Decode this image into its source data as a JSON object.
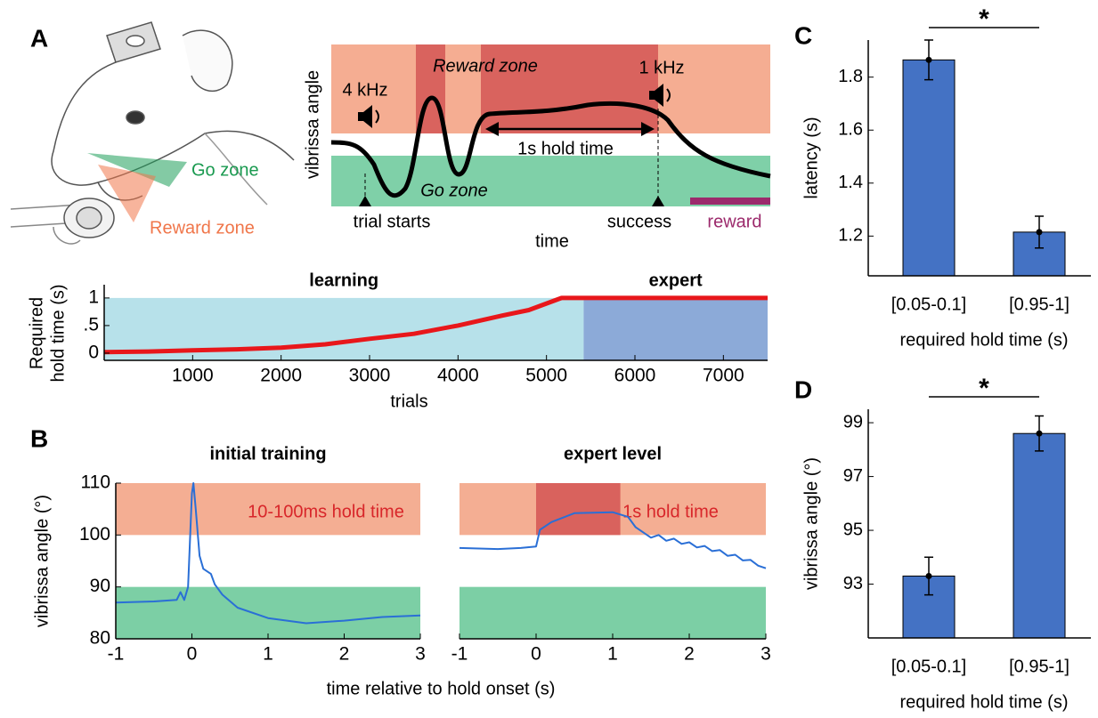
{
  "figure": {
    "panel_labels": [
      "A",
      "B",
      "C",
      "D"
    ],
    "illustration": {
      "go_zone": "Go zone",
      "reward_zone": "Reward zone"
    },
    "schematic": {
      "ylabel": "vibrissa angle",
      "reward_zone": "Reward zone",
      "go_zone": "Go zone",
      "tone_start": "4 kHz",
      "tone_end": "1 kHz",
      "hold": "1s hold time",
      "trial_starts": "trial starts",
      "success": "success",
      "reward": "reward",
      "xlabel": "time"
    }
  },
  "chart_data": [
    {
      "type": "line",
      "ylabel": [
        "Required",
        "hold time (s)"
      ],
      "xlabel": "trials",
      "xlim": [
        0,
        7500
      ],
      "ylim": [
        -0.13,
        1.24
      ],
      "xticks": [
        1000,
        2000,
        3000,
        4000,
        5000,
        6000,
        7000
      ],
      "yticks": [
        0,
        {
          "value": 0.5,
          "label": ".5"
        },
        1
      ],
      "regions": [
        {
          "label": "learning",
          "xlim": [
            0,
            5420
          ],
          "top": 1,
          "color": "#b7e1ea"
        },
        {
          "label": "expert",
          "xlim": [
            5420,
            7500
          ],
          "top": 1,
          "color": "#8caad8"
        }
      ],
      "x": [
        0,
        500,
        1000,
        1500,
        2000,
        2500,
        3000,
        3500,
        4000,
        4500,
        4800,
        5000,
        5170,
        7500
      ],
      "series": [
        {
          "color": "#e8171b",
          "values": [
            0.02,
            0.03,
            0.05,
            0.07,
            0.1,
            0.16,
            0.26,
            0.35,
            0.5,
            0.68,
            0.78,
            0.9,
            1,
            1
          ]
        }
      ]
    },
    {
      "type": "line",
      "title": "initial training",
      "ylabel": "vibrissa angle (°)",
      "xlabel": "time relative to hold onset (s)",
      "xlim": [
        -1,
        3
      ],
      "ylim": [
        80,
        110
      ],
      "xticks": [
        -1,
        0,
        1,
        2,
        3
      ],
      "yticks": [
        80,
        90,
        100,
        110
      ],
      "bands": [
        {
          "ylim": [
            100,
            110
          ],
          "color": "#f4ae93"
        },
        {
          "ylim": [
            80,
            90
          ],
          "color": "#7ccfa5"
        }
      ],
      "annotation": "10-100ms hold time",
      "x": [
        -1,
        -0.5,
        -0.2,
        -0.15,
        -0.1,
        -0.05,
        0,
        0.02,
        0.05,
        0.1,
        0.15,
        0.25,
        0.3,
        0.4,
        0.6,
        1,
        1.5,
        2,
        2.5,
        3
      ],
      "series": [
        {
          "color": "#2a6fd6",
          "values": [
            87,
            87.2,
            87.5,
            89,
            87.5,
            90,
            108,
            110,
            105,
            96,
            93.5,
            92.5,
            90.5,
            88.5,
            86,
            84,
            83,
            83.5,
            84.2,
            84.5
          ]
        }
      ]
    },
    {
      "type": "line",
      "title": "expert level",
      "xlim": [
        -1,
        3
      ],
      "ylim": [
        80,
        110
      ],
      "xticks": [
        -1,
        0,
        1,
        2,
        3
      ],
      "bands": [
        {
          "ylim": [
            100,
            110
          ],
          "color": "#f4ae93"
        },
        {
          "xlim": [
            0,
            1.1
          ],
          "ylim": [
            100,
            110
          ],
          "color": "#d9625d"
        },
        {
          "ylim": [
            80,
            90
          ],
          "color": "#7ccfa5"
        }
      ],
      "annotation": "1s hold time",
      "x": [
        -1,
        -0.5,
        -0.2,
        0,
        0.05,
        0.2,
        0.5,
        1,
        1.2,
        1.3,
        1.4,
        1.5,
        1.6,
        1.7,
        1.8,
        1.9,
        2,
        2.1,
        2.2,
        2.3,
        2.4,
        2.5,
        2.6,
        2.7,
        2.8,
        2.9,
        3
      ],
      "series": [
        {
          "color": "#2a6fd6",
          "values": [
            97.5,
            97.3,
            97.5,
            97.8,
            101,
            102.5,
            104.2,
            104.4,
            103.5,
            101.5,
            100.5,
            99.5,
            100,
            98.9,
            99.3,
            98.3,
            98.6,
            97.6,
            97.9,
            96.9,
            97.1,
            96,
            96.2,
            95.1,
            95.2,
            94.1,
            93.6
          ]
        }
      ]
    },
    {
      "type": "bar",
      "ylabel": "latency (s)",
      "xlabel": "required hold time (s)",
      "categories": [
        "[0.05-0.1]",
        "[0.95-1]"
      ],
      "values": [
        1.865,
        1.215
      ],
      "errors": [
        0.075,
        0.06
      ],
      "color": "#4472c4",
      "ylim": [
        1.05,
        1.94
      ],
      "yticks": [
        1.2,
        1.4,
        1.6,
        1.8
      ],
      "significance": "*"
    },
    {
      "type": "bar",
      "ylabel": "vibrissa angle (°)",
      "xlabel": "required hold time (s)",
      "categories": [
        "[0.05-0.1]",
        "[0.95-1]"
      ],
      "values": [
        93.3,
        98.6
      ],
      "errors": [
        0.7,
        0.65
      ],
      "color": "#4472c4",
      "ylim": [
        91,
        99.5
      ],
      "yticks": [
        93,
        95,
        97,
        99
      ],
      "significance": "*"
    }
  ]
}
